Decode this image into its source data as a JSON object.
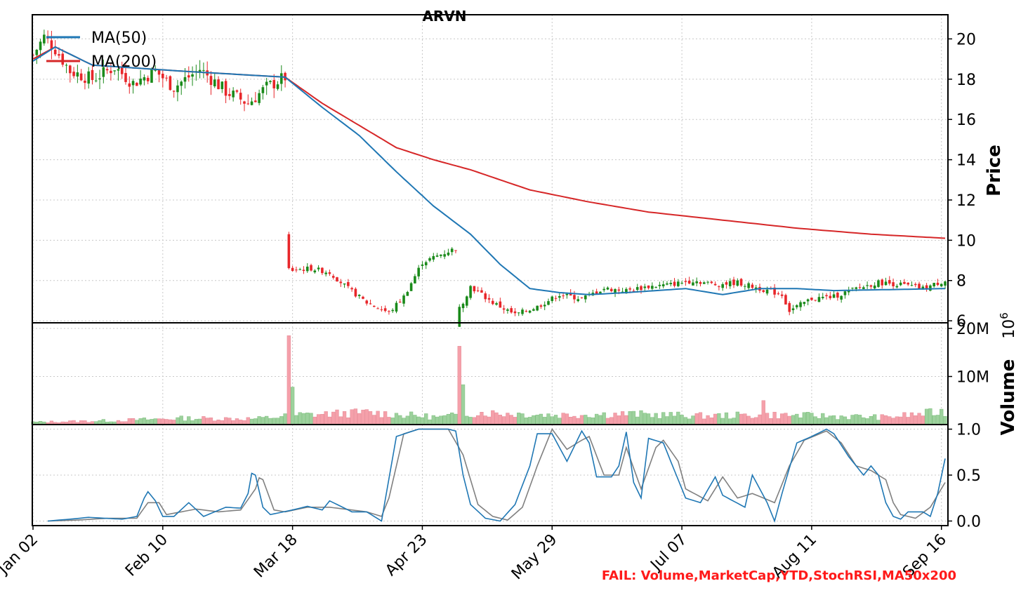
{
  "chart_data": {
    "type": "candlestick",
    "title": "ARVN",
    "x_tick_labels": [
      "Jan 02",
      "Feb 10",
      "Mar 18",
      "Apr 23",
      "May 29",
      "Jul 07",
      "Aug 11",
      "Sep 16"
    ],
    "price_panel": {
      "ylabel": "Price",
      "ylim": [
        5.9,
        21.2
      ],
      "yticks": [
        6,
        8,
        10,
        12,
        14,
        16,
        18,
        20
      ],
      "grid": true,
      "legend_position": "top-left",
      "series": [
        {
          "name": "MA(50)",
          "color": "#1f77b4"
        },
        {
          "name": "MA(200)",
          "color": "#d62728"
        }
      ],
      "ohlc_close_anchors": [
        [
          0,
          19.2
        ],
        [
          3,
          20.1
        ],
        [
          6,
          19.5
        ],
        [
          10,
          18.4
        ],
        [
          16,
          18.0
        ],
        [
          22,
          18.6
        ],
        [
          27,
          17.8
        ],
        [
          33,
          18.4
        ],
        [
          38,
          17.6
        ],
        [
          45,
          18.5
        ],
        [
          52,
          17.4
        ],
        [
          58,
          16.8
        ],
        [
          63,
          17.6
        ],
        [
          68,
          18.1
        ],
        [
          69,
          8.5
        ],
        [
          75,
          8.6
        ],
        [
          80,
          8.4
        ],
        [
          85,
          7.6
        ],
        [
          90,
          6.9
        ],
        [
          96,
          6.4
        ],
        [
          100,
          7.2
        ],
        [
          105,
          8.9
        ],
        [
          110,
          9.3
        ],
        [
          114,
          9.6
        ],
        [
          115,
          6.6
        ],
        [
          118,
          7.7
        ],
        [
          124,
          6.9
        ],
        [
          130,
          6.3
        ],
        [
          136,
          6.7
        ],
        [
          142,
          7.3
        ],
        [
          148,
          7.1
        ],
        [
          154,
          7.6
        ],
        [
          160,
          7.5
        ],
        [
          166,
          7.7
        ],
        [
          172,
          7.8
        ],
        [
          178,
          8.0
        ],
        [
          184,
          7.8
        ],
        [
          190,
          7.9
        ],
        [
          196,
          7.6
        ],
        [
          202,
          7.3
        ],
        [
          204,
          6.5
        ],
        [
          210,
          7.1
        ],
        [
          216,
          7.2
        ],
        [
          222,
          7.6
        ],
        [
          228,
          7.9
        ],
        [
          234,
          7.8
        ],
        [
          240,
          7.6
        ],
        [
          246,
          8.0
        ]
      ],
      "ma50_anchors": [
        [
          0,
          18.9
        ],
        [
          6,
          19.6
        ],
        [
          16,
          18.7
        ],
        [
          40,
          18.4
        ],
        [
          68,
          18.1
        ],
        [
          78,
          16.6
        ],
        [
          88,
          15.2
        ],
        [
          98,
          13.4
        ],
        [
          108,
          11.7
        ],
        [
          118,
          10.3
        ],
        [
          126,
          8.8
        ],
        [
          134,
          7.6
        ],
        [
          142,
          7.4
        ],
        [
          150,
          7.3
        ],
        [
          160,
          7.4
        ],
        [
          176,
          7.6
        ],
        [
          186,
          7.3
        ],
        [
          196,
          7.6
        ],
        [
          206,
          7.6
        ],
        [
          216,
          7.5
        ],
        [
          246,
          7.6
        ]
      ],
      "ma200_anchors": [
        [
          0,
          19.0
        ],
        [
          6,
          19.6
        ],
        [
          16,
          18.7
        ],
        [
          40,
          18.4
        ],
        [
          68,
          18.1
        ],
        [
          78,
          16.8
        ],
        [
          88,
          15.7
        ],
        [
          98,
          14.6
        ],
        [
          108,
          14.0
        ],
        [
          118,
          13.5
        ],
        [
          134,
          12.5
        ],
        [
          150,
          11.9
        ],
        [
          166,
          11.4
        ],
        [
          186,
          11.0
        ],
        [
          206,
          10.6
        ],
        [
          226,
          10.3
        ],
        [
          246,
          10.1
        ]
      ]
    },
    "volume_panel": {
      "ylabel": "Volume",
      "scale_label": "10^6",
      "ylim": [
        0,
        20000000
      ],
      "ytick_labels": [
        "10M",
        "20M"
      ],
      "yticks": [
        10000000,
        20000000
      ],
      "spikes": [
        [
          69,
          18500000
        ],
        [
          70,
          7800000
        ],
        [
          115,
          16300000
        ],
        [
          116,
          8300000
        ],
        [
          197,
          5000000
        ]
      ],
      "baseline_anchors": [
        [
          0,
          500000
        ],
        [
          20,
          800000
        ],
        [
          40,
          1300000
        ],
        [
          60,
          1200000
        ],
        [
          72,
          2000000
        ],
        [
          90,
          2500000
        ],
        [
          110,
          1500000
        ],
        [
          120,
          2500000
        ],
        [
          140,
          2000000
        ],
        [
          160,
          2200000
        ],
        [
          180,
          1800000
        ],
        [
          200,
          2000000
        ],
        [
          230,
          1500000
        ],
        [
          246,
          2700000
        ]
      ]
    },
    "stochrsi_panel": {
      "ylim": [
        -0.05,
        1.05
      ],
      "yticks": [
        0.0,
        0.5,
        1.0
      ],
      "ytick_labels": [
        "0.0",
        "0.5",
        "1.0"
      ],
      "series": [
        {
          "name": "",
          "color": "#1f77b4"
        },
        {
          "name": "",
          "color": "#808080"
        }
      ],
      "k_anchors": [
        [
          4,
          0.0
        ],
        [
          10,
          0.02
        ],
        [
          15,
          0.04
        ],
        [
          24,
          0.02
        ],
        [
          28,
          0.05
        ],
        [
          30,
          0.25
        ],
        [
          31,
          0.32
        ],
        [
          33,
          0.22
        ],
        [
          35,
          0.05
        ],
        [
          38,
          0.05
        ],
        [
          42,
          0.2
        ],
        [
          46,
          0.05
        ],
        [
          52,
          0.15
        ],
        [
          56,
          0.14
        ],
        [
          58,
          0.3
        ],
        [
          59,
          0.52
        ],
        [
          60,
          0.5
        ],
        [
          62,
          0.15
        ],
        [
          64,
          0.07
        ],
        [
          70,
          0.12
        ],
        [
          74,
          0.16
        ],
        [
          78,
          0.12
        ],
        [
          80,
          0.22
        ],
        [
          86,
          0.1
        ],
        [
          90,
          0.1
        ],
        [
          94,
          0.0
        ],
        [
          98,
          0.92
        ],
        [
          104,
          1.0
        ],
        [
          112,
          1.0
        ],
        [
          114,
          0.98
        ],
        [
          116,
          0.5
        ],
        [
          118,
          0.18
        ],
        [
          122,
          0.03
        ],
        [
          126,
          0.0
        ],
        [
          130,
          0.18
        ],
        [
          134,
          0.6
        ],
        [
          136,
          0.95
        ],
        [
          140,
          0.95
        ],
        [
          144,
          0.65
        ],
        [
          148,
          0.98
        ],
        [
          150,
          0.85
        ],
        [
          152,
          0.48
        ],
        [
          156,
          0.48
        ],
        [
          158,
          0.6
        ],
        [
          160,
          0.97
        ],
        [
          162,
          0.42
        ],
        [
          164,
          0.25
        ],
        [
          166,
          0.9
        ],
        [
          170,
          0.85
        ],
        [
          174,
          0.45
        ],
        [
          176,
          0.25
        ],
        [
          180,
          0.2
        ],
        [
          184,
          0.48
        ],
        [
          186,
          0.28
        ],
        [
          192,
          0.15
        ],
        [
          194,
          0.5
        ],
        [
          198,
          0.2
        ],
        [
          200,
          0.0
        ],
        [
          202,
          0.3
        ],
        [
          206,
          0.85
        ],
        [
          210,
          0.92
        ],
        [
          214,
          1.0
        ],
        [
          216,
          0.95
        ],
        [
          220,
          0.7
        ],
        [
          224,
          0.5
        ],
        [
          226,
          0.6
        ],
        [
          228,
          0.5
        ],
        [
          230,
          0.2
        ],
        [
          232,
          0.05
        ],
        [
          234,
          0.02
        ],
        [
          236,
          0.1
        ],
        [
          240,
          0.1
        ],
        [
          242,
          0.05
        ],
        [
          244,
          0.3
        ],
        [
          246,
          0.68
        ]
      ],
      "d_anchors": [
        [
          4,
          0.0
        ],
        [
          12,
          0.01
        ],
        [
          20,
          0.03
        ],
        [
          28,
          0.03
        ],
        [
          31,
          0.2
        ],
        [
          34,
          0.2
        ],
        [
          36,
          0.07
        ],
        [
          40,
          0.1
        ],
        [
          44,
          0.13
        ],
        [
          50,
          0.1
        ],
        [
          56,
          0.12
        ],
        [
          60,
          0.35
        ],
        [
          61,
          0.47
        ],
        [
          62,
          0.45
        ],
        [
          65,
          0.12
        ],
        [
          68,
          0.1
        ],
        [
          74,
          0.15
        ],
        [
          80,
          0.15
        ],
        [
          86,
          0.12
        ],
        [
          90,
          0.1
        ],
        [
          94,
          0.05
        ],
        [
          96,
          0.25
        ],
        [
          100,
          0.95
        ],
        [
          104,
          1.0
        ],
        [
          112,
          1.0
        ],
        [
          116,
          0.72
        ],
        [
          120,
          0.18
        ],
        [
          124,
          0.05
        ],
        [
          128,
          0.01
        ],
        [
          132,
          0.15
        ],
        [
          136,
          0.6
        ],
        [
          140,
          1.0
        ],
        [
          144,
          0.78
        ],
        [
          148,
          0.88
        ],
        [
          150,
          0.92
        ],
        [
          154,
          0.5
        ],
        [
          158,
          0.5
        ],
        [
          160,
          0.8
        ],
        [
          164,
          0.35
        ],
        [
          168,
          0.8
        ],
        [
          170,
          0.88
        ],
        [
          174,
          0.65
        ],
        [
          176,
          0.35
        ],
        [
          182,
          0.22
        ],
        [
          186,
          0.48
        ],
        [
          190,
          0.25
        ],
        [
          194,
          0.3
        ],
        [
          200,
          0.2
        ],
        [
          204,
          0.6
        ],
        [
          208,
          0.88
        ],
        [
          214,
          0.98
        ],
        [
          218,
          0.85
        ],
        [
          222,
          0.6
        ],
        [
          226,
          0.55
        ],
        [
          230,
          0.45
        ],
        [
          232,
          0.2
        ],
        [
          234,
          0.07
        ],
        [
          238,
          0.03
        ],
        [
          242,
          0.15
        ],
        [
          246,
          0.42
        ]
      ]
    }
  },
  "footer": {
    "fail_message": "FAIL: Volume,MarketCap,YTD,StochRSI,MA50x200",
    "fail_color": "#ff1a1a"
  },
  "colors": {
    "up": "#1a8a1a",
    "down": "#e8262a",
    "volume_up": "#9dd19d",
    "volume_down": "#f5a0aa",
    "grid": "#c8c8c8"
  }
}
